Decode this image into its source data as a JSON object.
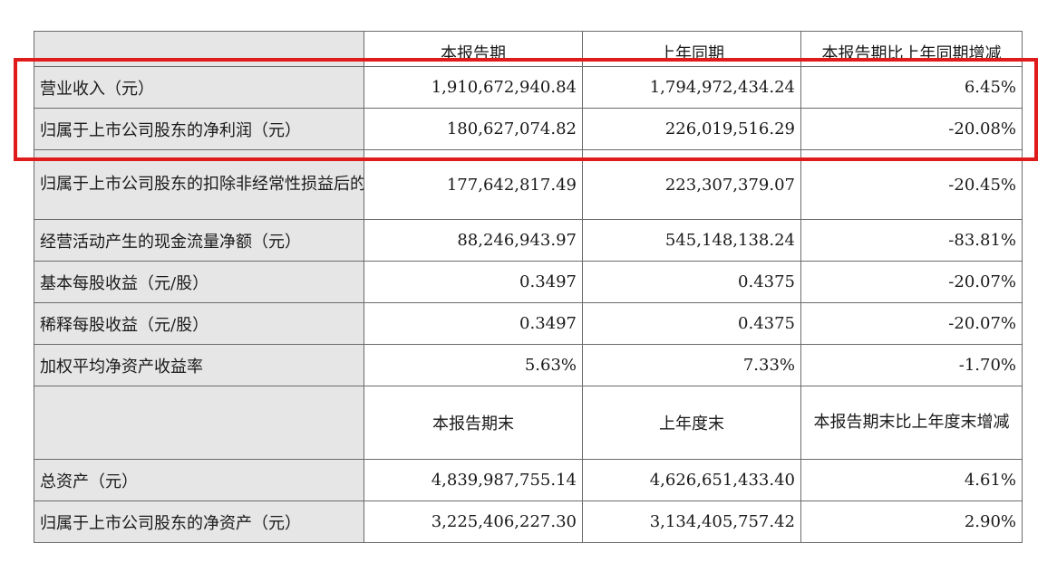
{
  "header1": {
    "col1": "本报告期",
    "col2": "上年同期",
    "col3": "本报告期比上年同期增减"
  },
  "rows1": [
    {
      "label": "营业收入（元）",
      "v1": "1,910,672,940.84",
      "v2": "1,794,972,434.24",
      "v3": "6.45%"
    },
    {
      "label": "归属于上市公司股东的净利润（元）",
      "v1": "180,627,074.82",
      "v2": "226,019,516.29",
      "v3": "-20.08%"
    },
    {
      "label": "归属于上市公司股东的扣除非经常性损益后的净利润（元）",
      "v1": "177,642,817.49",
      "v2": "223,307,379.07",
      "v3": "-20.45%"
    },
    {
      "label": "经营活动产生的现金流量净额（元）",
      "v1": "88,246,943.97",
      "v2": "545,148,138.24",
      "v3": "-83.81%"
    },
    {
      "label": "基本每股收益（元/股）",
      "v1": "0.3497",
      "v2": "0.4375",
      "v3": "-20.07%"
    },
    {
      "label": "稀释每股收益（元/股）",
      "v1": "0.3497",
      "v2": "0.4375",
      "v3": "-20.07%"
    },
    {
      "label": "加权平均净资产收益率",
      "v1": "5.63%",
      "v2": "7.33%",
      "v3": "-1.70%"
    }
  ],
  "header2": {
    "col1": "本报告期末",
    "col2": "上年度末",
    "col3": "本报告期末比上年度末增减"
  },
  "rows2": [
    {
      "label": "总资产（元）",
      "v1": "4,839,987,755.14",
      "v2": "4,626,651,433.40",
      "v3": "4.61%"
    },
    {
      "label": "归属于上市公司股东的净资产（元）",
      "v1": "3,225,406,227.30",
      "v2": "3,134,405,757.42",
      "v3": "2.90%"
    }
  ],
  "highlight_color": "#e01b1b"
}
